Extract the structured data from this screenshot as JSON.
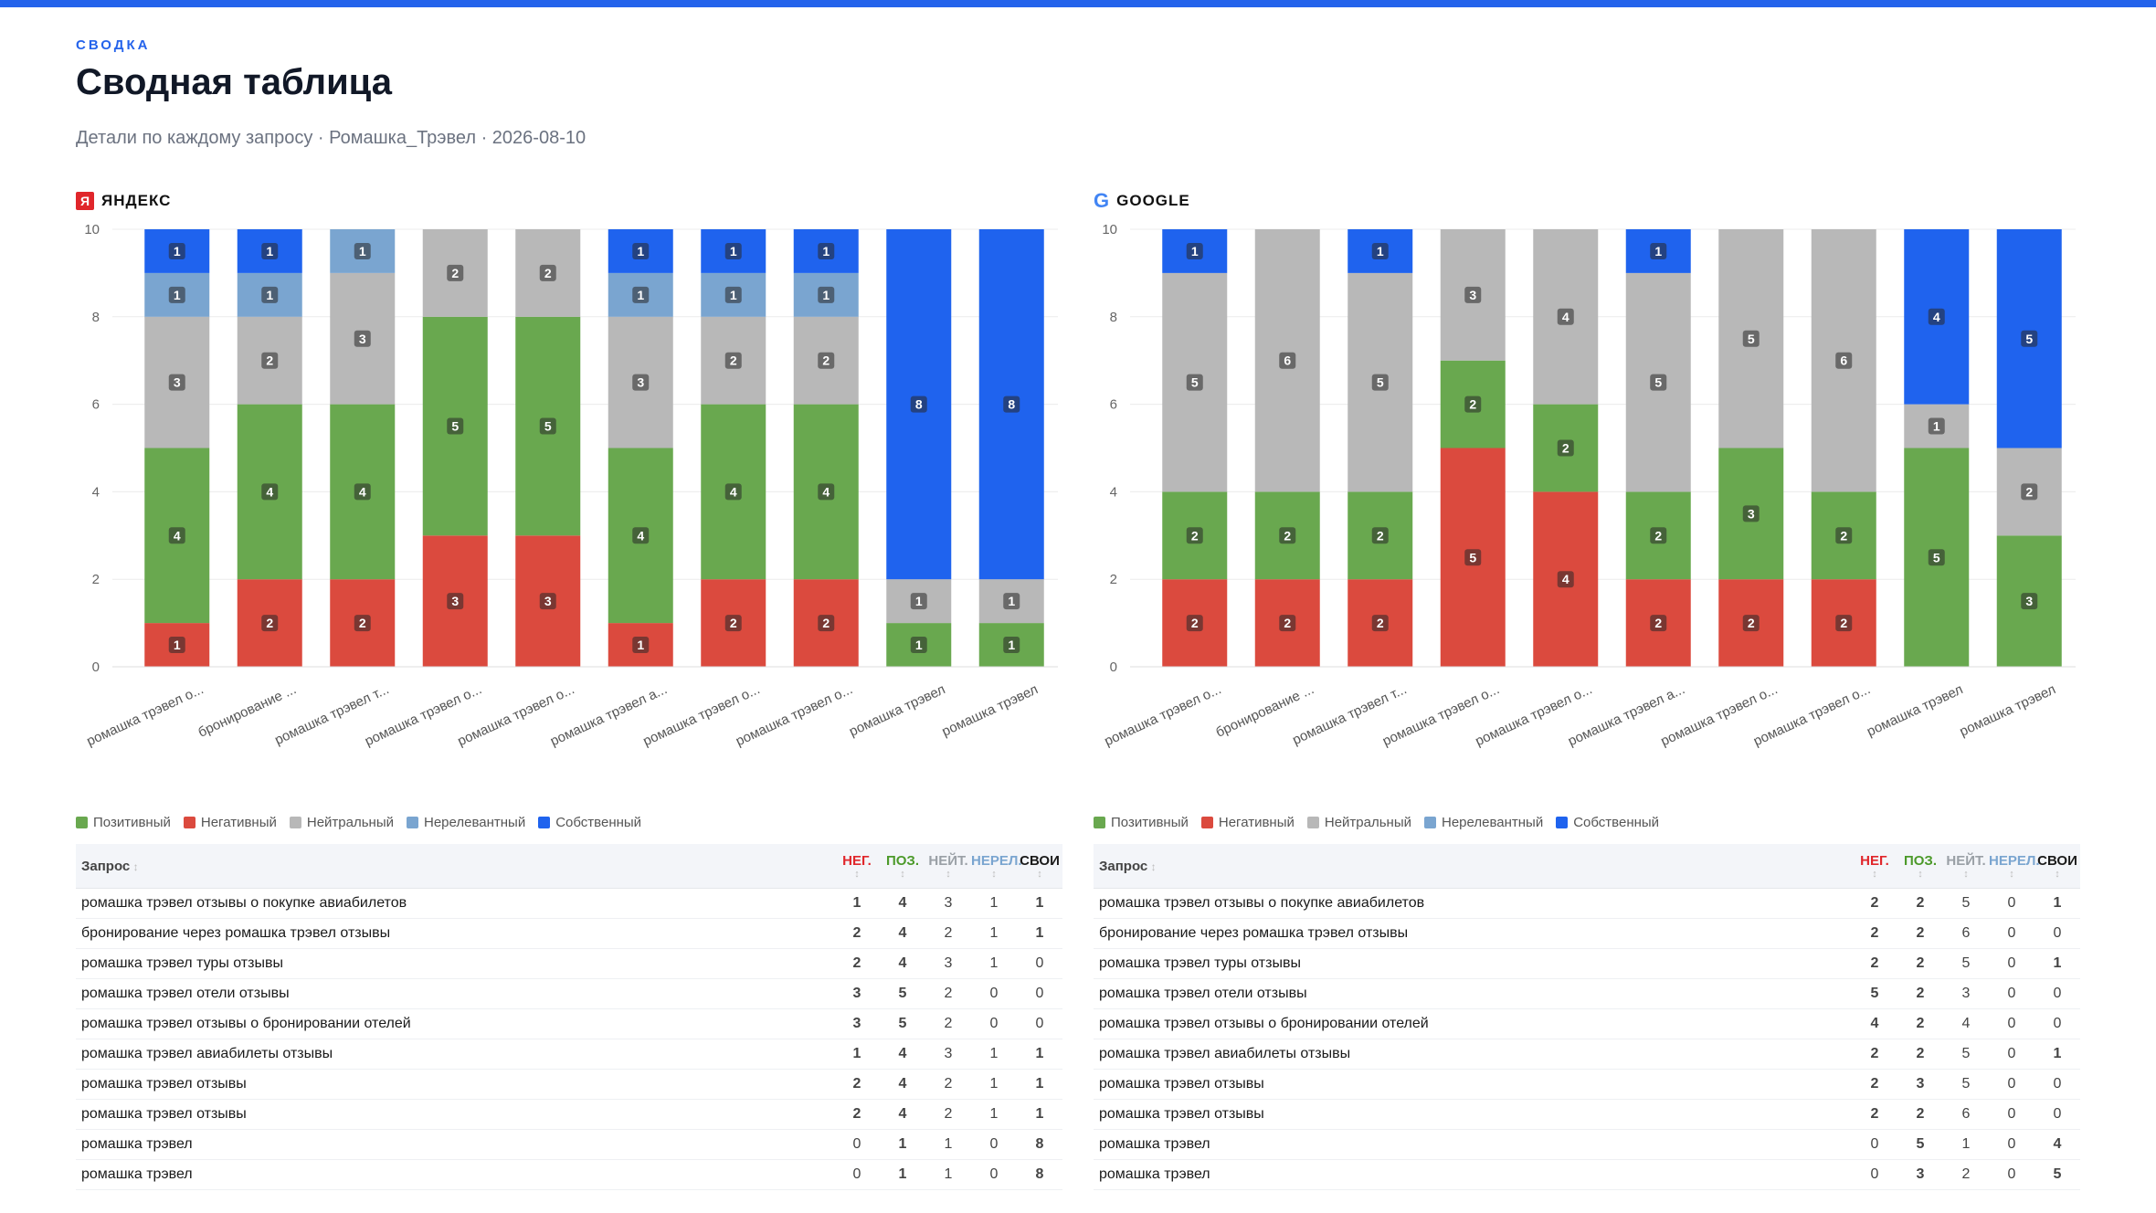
{
  "header": {
    "eyebrow": "СВОДКА",
    "title": "Сводная таблица",
    "subtitle": "Детали по каждому запросу · Ромашка_Трэвел · 2026-08-10"
  },
  "colors": {
    "positive": "#69a84f",
    "negative": "#db4a3e",
    "neutral": "#b8b8b8",
    "irrelevant": "#7aa5d0",
    "own": "#1f63ee",
    "accent": "#2463eb"
  },
  "legend": [
    "Позитивный",
    "Негативный",
    "Нейтральный",
    "Нерелевантный",
    "Собственный"
  ],
  "table_headers": {
    "query": "Запрос",
    "neg": "НЕГ.",
    "pos": "ПОЗ.",
    "neu": "НЕЙТ.",
    "irr": "НЕРЕЛ.",
    "own": "СВОИ"
  },
  "chart_data": [
    {
      "engine": "ЯНДЕКС",
      "engine_icon": "yandex-icon",
      "type": "bar",
      "stacked": true,
      "ylim": [
        0,
        10
      ],
      "yticks": [
        0,
        2,
        4,
        6,
        8,
        10
      ],
      "categories": [
        "ромашка трэвел о...",
        "бронирование ...",
        "ромашка трэвел т...",
        "ромашка трэвел о...",
        "ромашка трэвел о...",
        "ромашка трэвел а...",
        "ромашка трэвел о...",
        "ромашка трэвел о...",
        "ромашка трэвел",
        "ромашка трэвел"
      ],
      "series": [
        {
          "name": "Негативный",
          "key": "negative",
          "values": [
            1,
            2,
            2,
            3,
            3,
            1,
            2,
            2,
            0,
            0
          ]
        },
        {
          "name": "Позитивный",
          "key": "positive",
          "values": [
            4,
            4,
            4,
            5,
            5,
            4,
            4,
            4,
            1,
            1
          ]
        },
        {
          "name": "Нейтральный",
          "key": "neutral",
          "values": [
            3,
            2,
            3,
            2,
            2,
            3,
            2,
            2,
            1,
            1
          ]
        },
        {
          "name": "Нерелевантный",
          "key": "irrelevant",
          "values": [
            1,
            1,
            1,
            0,
            0,
            1,
            1,
            1,
            0,
            0
          ]
        },
        {
          "name": "Собственный",
          "key": "own",
          "values": [
            1,
            1,
            0,
            0,
            0,
            1,
            1,
            1,
            8,
            8
          ]
        }
      ],
      "rows": [
        {
          "query": "ромашка трэвел отзывы о покупке авиабилетов",
          "neg": 1,
          "pos": 4,
          "neu": 3,
          "irr": 1,
          "own": 1
        },
        {
          "query": "бронирование через ромашка трэвел отзывы",
          "neg": 2,
          "pos": 4,
          "neu": 2,
          "irr": 1,
          "own": 1
        },
        {
          "query": "ромашка трэвел туры отзывы",
          "neg": 2,
          "pos": 4,
          "neu": 3,
          "irr": 1,
          "own": 0
        },
        {
          "query": "ромашка трэвел отели отзывы",
          "neg": 3,
          "pos": 5,
          "neu": 2,
          "irr": 0,
          "own": 0
        },
        {
          "query": "ромашка трэвел отзывы о бронировании отелей",
          "neg": 3,
          "pos": 5,
          "neu": 2,
          "irr": 0,
          "own": 0
        },
        {
          "query": "ромашка трэвел авиабилеты отзывы",
          "neg": 1,
          "pos": 4,
          "neu": 3,
          "irr": 1,
          "own": 1
        },
        {
          "query": "ромашка трэвел отзывы",
          "neg": 2,
          "pos": 4,
          "neu": 2,
          "irr": 1,
          "own": 1
        },
        {
          "query": "ромашка трэвел отзывы",
          "neg": 2,
          "pos": 4,
          "neu": 2,
          "irr": 1,
          "own": 1
        },
        {
          "query": "ромашка трэвел",
          "neg": 0,
          "pos": 1,
          "neu": 1,
          "irr": 0,
          "own": 8
        },
        {
          "query": "ромашка трэвел",
          "neg": 0,
          "pos": 1,
          "neu": 1,
          "irr": 0,
          "own": 8
        }
      ]
    },
    {
      "engine": "GOOGLE",
      "engine_icon": "google-icon",
      "type": "bar",
      "stacked": true,
      "ylim": [
        0,
        10
      ],
      "yticks": [
        0,
        2,
        4,
        6,
        8,
        10
      ],
      "categories": [
        "ромашка трэвел о...",
        "бронирование ...",
        "ромашка трэвел т...",
        "ромашка трэвел о...",
        "ромашка трэвел о...",
        "ромашка трэвел а...",
        "ромашка трэвел о...",
        "ромашка трэвел о...",
        "ромашка трэвел",
        "ромашка трэвел"
      ],
      "series": [
        {
          "name": "Негативный",
          "key": "negative",
          "values": [
            2,
            2,
            2,
            5,
            4,
            2,
            2,
            2,
            0,
            0
          ]
        },
        {
          "name": "Позитивный",
          "key": "positive",
          "values": [
            2,
            2,
            2,
            2,
            2,
            2,
            3,
            2,
            5,
            3
          ]
        },
        {
          "name": "Нейтральный",
          "key": "neutral",
          "values": [
            5,
            6,
            5,
            3,
            4,
            5,
            5,
            6,
            1,
            2
          ]
        },
        {
          "name": "Нерелевантный",
          "key": "irrelevant",
          "values": [
            0,
            0,
            0,
            0,
            0,
            0,
            0,
            0,
            0,
            0
          ]
        },
        {
          "name": "Собственный",
          "key": "own",
          "values": [
            1,
            0,
            1,
            0,
            0,
            1,
            0,
            0,
            4,
            5
          ]
        }
      ],
      "rows": [
        {
          "query": "ромашка трэвел отзывы о покупке авиабилетов",
          "neg": 2,
          "pos": 2,
          "neu": 5,
          "irr": 0,
          "own": 1
        },
        {
          "query": "бронирование через ромашка трэвел отзывы",
          "neg": 2,
          "pos": 2,
          "neu": 6,
          "irr": 0,
          "own": 0
        },
        {
          "query": "ромашка трэвел туры отзывы",
          "neg": 2,
          "pos": 2,
          "neu": 5,
          "irr": 0,
          "own": 1
        },
        {
          "query": "ромашка трэвел отели отзывы",
          "neg": 5,
          "pos": 2,
          "neu": 3,
          "irr": 0,
          "own": 0
        },
        {
          "query": "ромашка трэвел отзывы о бронировании отелей",
          "neg": 4,
          "pos": 2,
          "neu": 4,
          "irr": 0,
          "own": 0
        },
        {
          "query": "ромашка трэвел авиабилеты отзывы",
          "neg": 2,
          "pos": 2,
          "neu": 5,
          "irr": 0,
          "own": 1
        },
        {
          "query": "ромашка трэвел отзывы",
          "neg": 2,
          "pos": 3,
          "neu": 5,
          "irr": 0,
          "own": 0
        },
        {
          "query": "ромашка трэвел отзывы",
          "neg": 2,
          "pos": 2,
          "neu": 6,
          "irr": 0,
          "own": 0
        },
        {
          "query": "ромашка трэвел",
          "neg": 0,
          "pos": 5,
          "neu": 1,
          "irr": 0,
          "own": 4
        },
        {
          "query": "ромашка трэвел",
          "neg": 0,
          "pos": 3,
          "neu": 2,
          "irr": 0,
          "own": 5
        }
      ]
    }
  ]
}
